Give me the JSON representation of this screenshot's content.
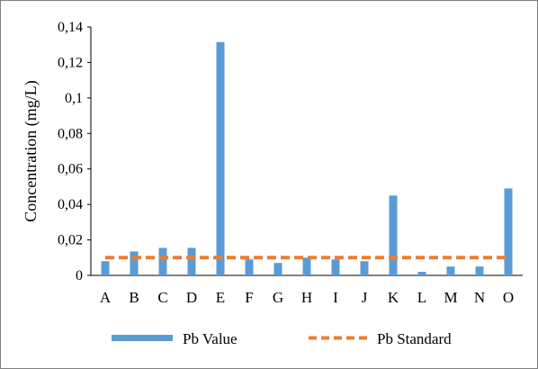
{
  "chart_data": {
    "type": "bar",
    "categories": [
      "A",
      "B",
      "C",
      "D",
      "E",
      "F",
      "G",
      "H",
      "I",
      "J",
      "K",
      "L",
      "M",
      "N",
      "O"
    ],
    "series": [
      {
        "name": "Pb Value",
        "type": "bar",
        "color": "#5b9bd5",
        "values": [
          0.008,
          0.0135,
          0.0155,
          0.0155,
          0.1315,
          0.009,
          0.007,
          0.01,
          0.009,
          0.008,
          0.045,
          0.002,
          0.005,
          0.005,
          0.049
        ]
      },
      {
        "name": "Pb Standard",
        "type": "line",
        "style": "dashed",
        "color": "#ed7d31",
        "value": 0.01
      }
    ],
    "ylabel": "Concentration  (mg/L)",
    "xlabel": "",
    "ylim": [
      0,
      0.14
    ],
    "yticks": [
      "0",
      "0,02",
      "0,04",
      "0,06",
      "0,08",
      "0,1",
      "0,12",
      "0,14"
    ],
    "grid": false,
    "legend_position": "bottom"
  }
}
